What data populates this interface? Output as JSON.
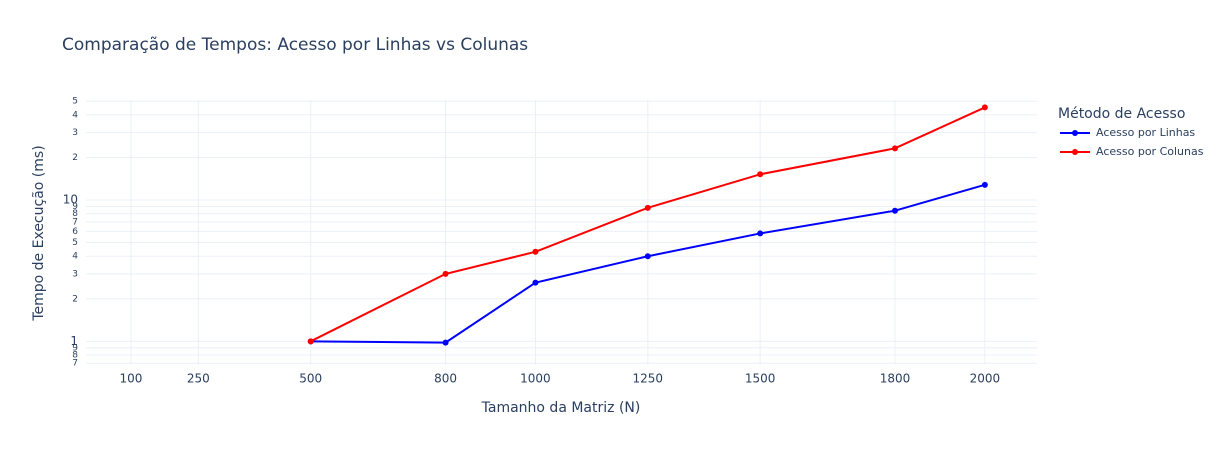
{
  "chart_data": {
    "type": "line",
    "title": "Comparação de Tempos: Acesso por Linhas vs Colunas",
    "x_label": "Tamanho da Matriz (N)",
    "y_label": "Tempo de Execução (ms)",
    "legend_title": "Método de Acesso",
    "x": [
      500,
      800,
      1000,
      1250,
      1500,
      1800,
      2000
    ],
    "series": [
      {
        "name": "Acesso por Linhas",
        "color": "#0000ff",
        "values": [
          1.0,
          0.98,
          2.6,
          4.0,
          5.8,
          8.4,
          12.8
        ]
      },
      {
        "name": "Acesso por Colunas",
        "color": "#ff0000",
        "values": [
          1.0,
          3.0,
          4.3,
          8.8,
          15.2,
          23.2,
          45.2
        ]
      }
    ],
    "xlim": [
      0,
      2116
    ],
    "xticks": [
      100,
      250,
      500,
      800,
      1000,
      1250,
      1500,
      1800,
      2000
    ],
    "ylim": [
      0.68,
      51
    ],
    "y_log": true,
    "yticks": [
      {
        "value": 0.7,
        "label": "7"
      },
      {
        "value": 0.8,
        "label": "8"
      },
      {
        "value": 0.9,
        "label": "9"
      },
      1,
      2,
      3,
      4,
      5,
      6,
      7,
      8,
      9,
      10,
      {
        "value": 20,
        "label": "2"
      },
      {
        "value": 30,
        "label": "3"
      },
      {
        "value": 40,
        "label": "4"
      },
      {
        "value": 50,
        "label": "5"
      }
    ],
    "grid": true,
    "legend_position": "right"
  }
}
